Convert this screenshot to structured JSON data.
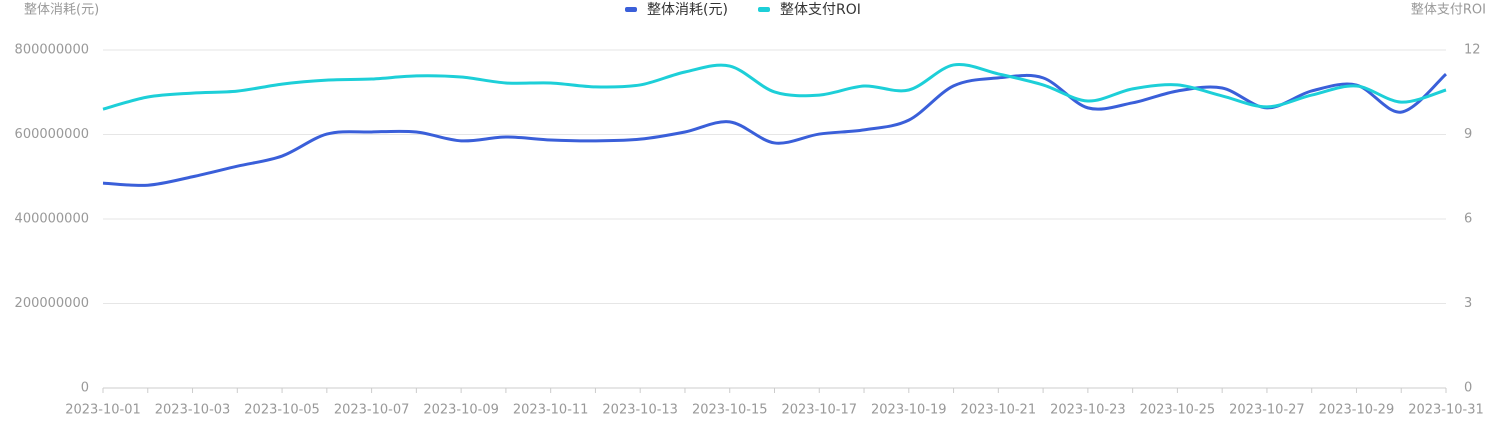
{
  "chart_data": {
    "type": "line",
    "y_label": "整体消耗(元)",
    "y2_label": "整体支付ROI",
    "categories": [
      "2023-10-01",
      null,
      "2023-10-03",
      null,
      "2023-10-05",
      null,
      "2023-10-07",
      null,
      "2023-10-09",
      null,
      "2023-10-11",
      null,
      "2023-10-13",
      null,
      "2023-10-15",
      null,
      "2023-10-17",
      null,
      "2023-10-19",
      null,
      "2023-10-21",
      null,
      "2023-10-23",
      null,
      "2023-10-25",
      null,
      "2023-10-27",
      null,
      "2023-10-29",
      null,
      "2023-10-31"
    ],
    "series": [
      {
        "name": "整体消耗(元)",
        "color": "#3a5fd9",
        "values": [
          485000000,
          480000000,
          500000000,
          525000000,
          549000000,
          601000000,
          606000000,
          606000000,
          585000000,
          594000000,
          587000000,
          585000000,
          589000000,
          606000000,
          630000000,
          580000000,
          601000000,
          611000000,
          634000000,
          715000000,
          734000000,
          734000000,
          663000000,
          675000000,
          703000000,
          710000000,
          663000000,
          703000000,
          717000000,
          653000000,
          743000000
        ]
      },
      {
        "name": "整体支付ROI",
        "color": "#1dcfd8",
        "axis": "y2",
        "values": [
          9.9,
          10.33,
          10.47,
          10.54,
          10.79,
          10.93,
          10.97,
          11.08,
          11.04,
          10.83,
          10.83,
          10.69,
          10.76,
          11.22,
          11.43,
          10.51,
          10.4,
          10.72,
          10.58,
          11.47,
          11.15,
          10.76,
          10.19,
          10.62,
          10.76,
          10.37,
          9.98,
          10.4,
          10.72,
          10.15,
          10.58
        ]
      }
    ],
    "ylim": [
      0,
      800000000
    ],
    "yticks": [
      0,
      200000000,
      400000000,
      600000000,
      800000000
    ],
    "y2lim": [
      0,
      12
    ],
    "y2ticks": [
      0,
      3,
      6,
      9,
      12
    ],
    "grid": true,
    "legend": "top"
  }
}
